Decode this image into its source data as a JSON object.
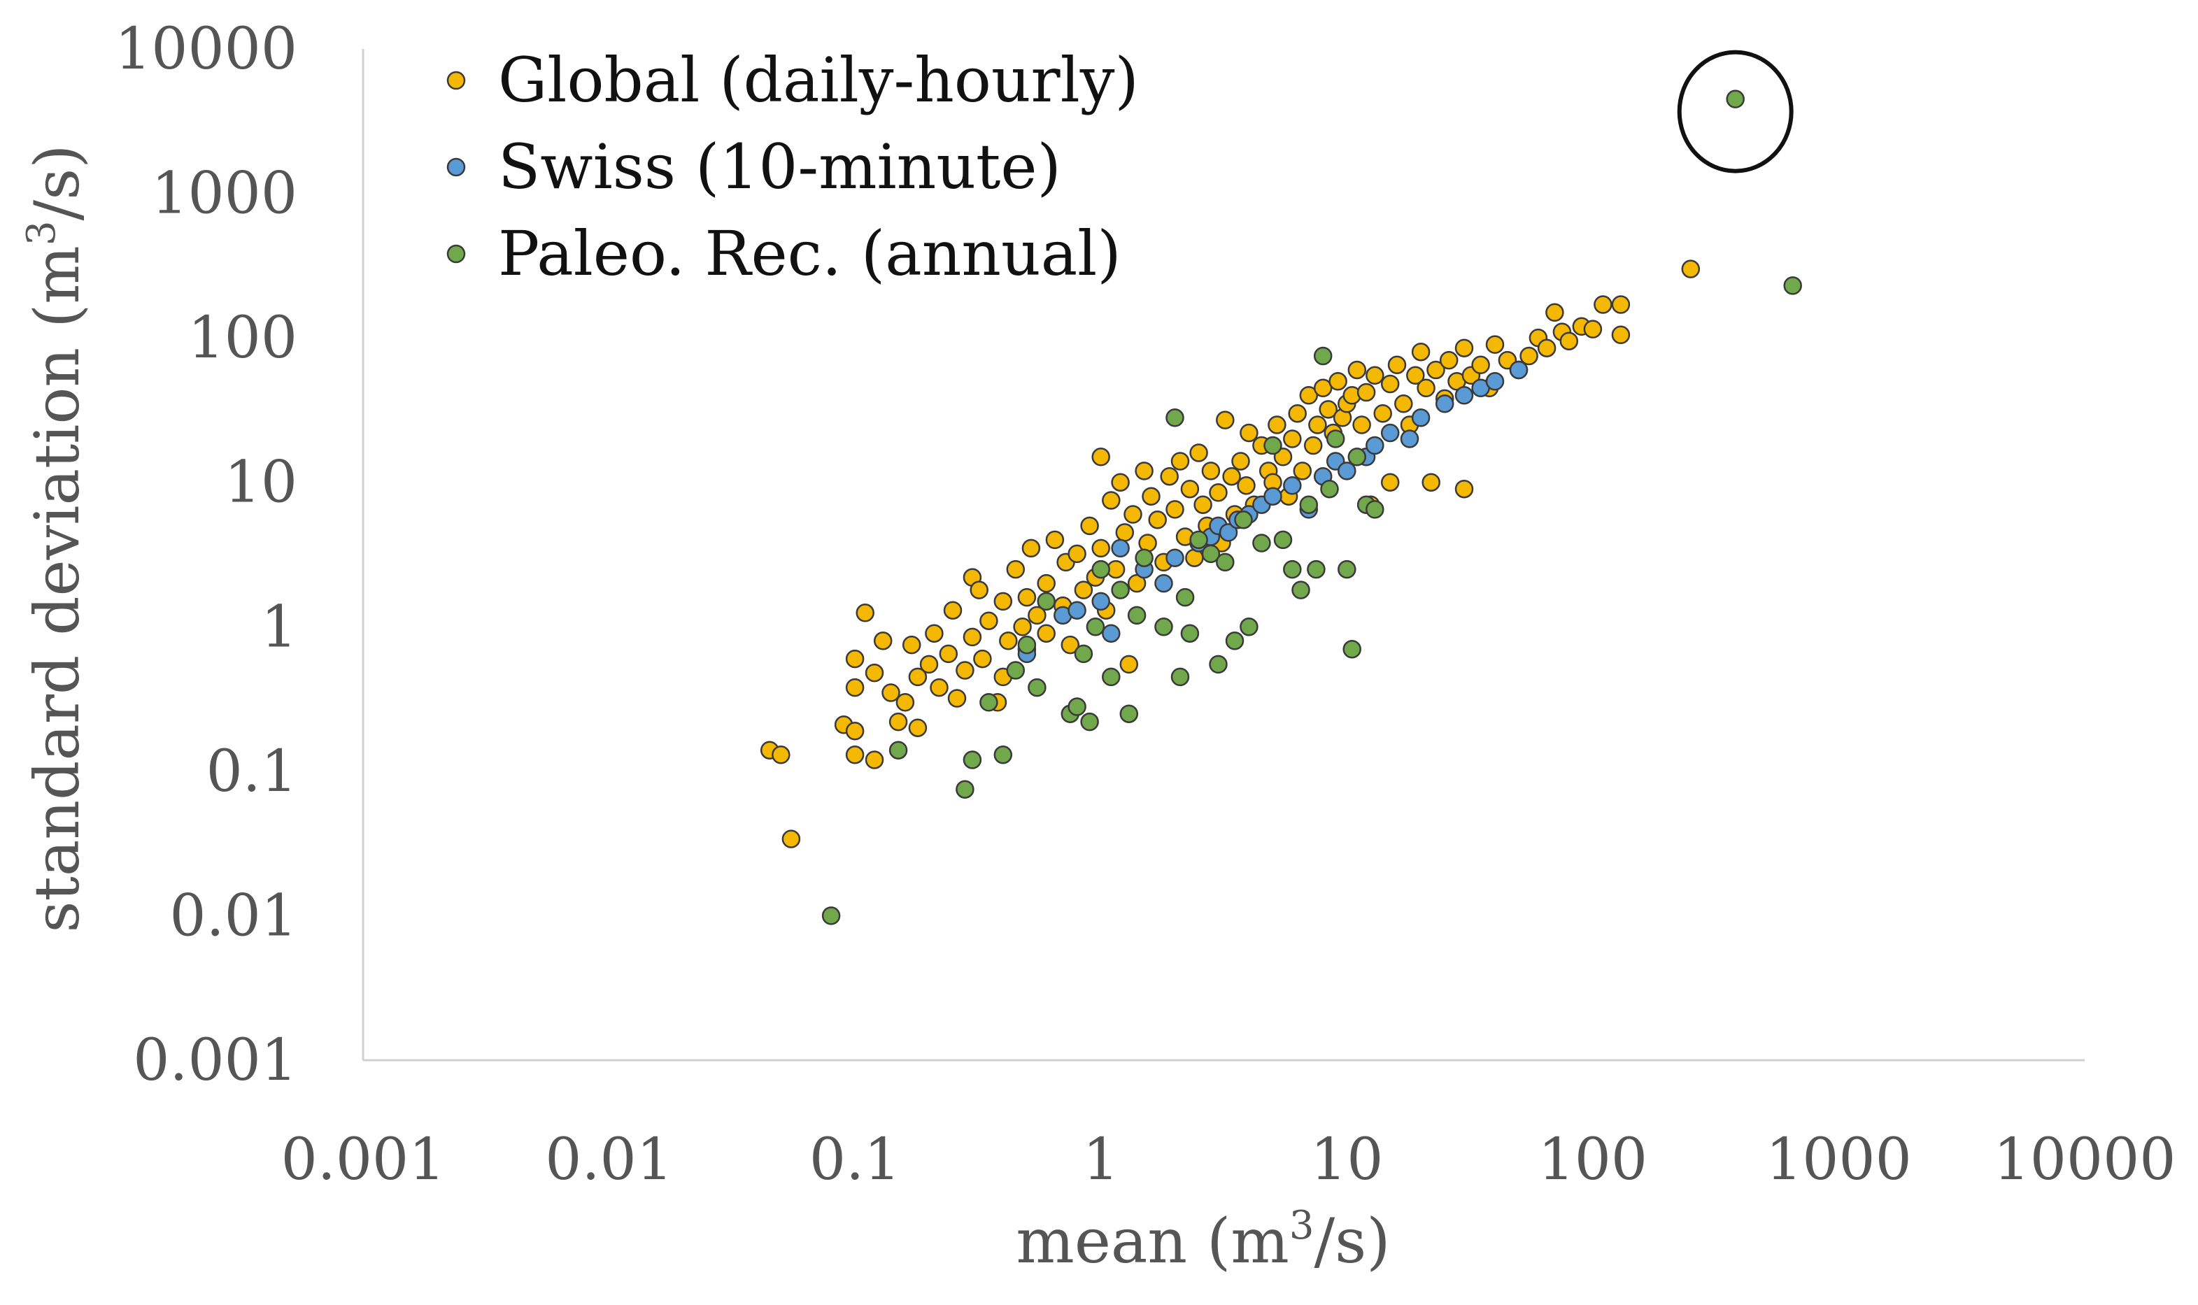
{
  "chart_data": {
    "type": "scatter",
    "title": "",
    "xlabel": {
      "main": "mean (m",
      "sup": "3",
      "tail": "/s)"
    },
    "ylabel": {
      "main": "standard deviation (m",
      "sup": "3",
      "tail": "/s)"
    },
    "x_scale": "log",
    "y_scale": "log",
    "xlim": [
      0.001,
      10000
    ],
    "ylim": [
      0.001,
      10000
    ],
    "x_ticks": [
      0.001,
      0.01,
      0.1,
      1,
      10,
      100,
      1000,
      10000
    ],
    "y_ticks": [
      0.001,
      0.01,
      0.1,
      1,
      10,
      100,
      1000,
      10000
    ],
    "x_tick_labels": [
      "0.001",
      "0.01",
      "0.1",
      "1",
      "10",
      "100",
      "1000",
      "10000"
    ],
    "y_tick_labels": [
      "0.001",
      "0.01",
      "0.1",
      "1",
      "10",
      "100",
      "1000",
      "10000"
    ],
    "grid": false,
    "legend_position": "top-left",
    "annotation": {
      "type": "circle-highlight",
      "target_series": "Paleo. Rec. (annual)",
      "x": 380,
      "y": 4500
    },
    "series": [
      {
        "name": "Global (daily-hourly)",
        "color": "#f5b800",
        "points": [
          [
            0.045,
            0.14
          ],
          [
            0.05,
            0.13
          ],
          [
            0.055,
            0.034
          ],
          [
            0.09,
            0.21
          ],
          [
            0.1,
            0.19
          ],
          [
            0.1,
            0.13
          ],
          [
            0.12,
            0.12
          ],
          [
            0.1,
            0.6
          ],
          [
            0.1,
            0.38
          ],
          [
            0.11,
            1.25
          ],
          [
            0.12,
            0.48
          ],
          [
            0.13,
            0.8
          ],
          [
            0.14,
            0.35
          ],
          [
            0.15,
            0.22
          ],
          [
            0.16,
            0.3
          ],
          [
            0.17,
            0.75
          ],
          [
            0.18,
            0.45
          ],
          [
            0.18,
            0.2
          ],
          [
            0.2,
            0.55
          ],
          [
            0.21,
            0.9
          ],
          [
            0.22,
            0.38
          ],
          [
            0.24,
            0.65
          ],
          [
            0.25,
            1.3
          ],
          [
            0.26,
            0.32
          ],
          [
            0.28,
            0.5
          ],
          [
            0.3,
            0.85
          ],
          [
            0.3,
            2.2
          ],
          [
            0.32,
            1.8
          ],
          [
            0.33,
            0.6
          ],
          [
            0.35,
            1.1
          ],
          [
            0.38,
            0.3
          ],
          [
            0.4,
            0.45
          ],
          [
            0.4,
            1.5
          ],
          [
            0.42,
            0.8
          ],
          [
            0.45,
            2.5
          ],
          [
            0.48,
            1.0
          ],
          [
            0.5,
            0.7
          ],
          [
            0.5,
            1.6
          ],
          [
            0.52,
            3.5
          ],
          [
            0.55,
            1.2
          ],
          [
            0.6,
            2.0
          ],
          [
            0.6,
            0.9
          ],
          [
            0.65,
            4.0
          ],
          [
            0.7,
            1.4
          ],
          [
            0.72,
            2.8
          ],
          [
            0.75,
            0.75
          ],
          [
            0.8,
            3.2
          ],
          [
            0.85,
            1.8
          ],
          [
            0.9,
            5.0
          ],
          [
            0.95,
            2.2
          ],
          [
            1.0,
            15
          ],
          [
            1.0,
            3.5
          ],
          [
            1.05,
            1.3
          ],
          [
            1.1,
            7.5
          ],
          [
            1.15,
            2.5
          ],
          [
            1.2,
            10
          ],
          [
            1.25,
            4.5
          ],
          [
            1.3,
            0.55
          ],
          [
            1.35,
            6.0
          ],
          [
            1.4,
            2.0
          ],
          [
            1.5,
            12
          ],
          [
            1.55,
            3.8
          ],
          [
            1.6,
            8.0
          ],
          [
            1.7,
            5.5
          ],
          [
            1.8,
            2.8
          ],
          [
            1.9,
            11
          ],
          [
            2.0,
            6.5
          ],
          [
            2.1,
            14
          ],
          [
            2.2,
            4.2
          ],
          [
            2.3,
            9.0
          ],
          [
            2.4,
            3.0
          ],
          [
            2.5,
            16
          ],
          [
            2.6,
            7.0
          ],
          [
            2.7,
            5.0
          ],
          [
            2.8,
            12
          ],
          [
            3.0,
            8.5
          ],
          [
            3.1,
            3.8
          ],
          [
            3.2,
            27
          ],
          [
            3.4,
            11
          ],
          [
            3.5,
            6.0
          ],
          [
            3.7,
            14
          ],
          [
            3.9,
            9.5
          ],
          [
            4.0,
            22
          ],
          [
            4.2,
            7.0
          ],
          [
            4.5,
            18
          ],
          [
            4.8,
            12
          ],
          [
            5.0,
            10
          ],
          [
            5.2,
            25
          ],
          [
            5.5,
            15
          ],
          [
            5.8,
            8.0
          ],
          [
            6.0,
            20
          ],
          [
            6.3,
            30
          ],
          [
            6.6,
            12
          ],
          [
            7.0,
            40
          ],
          [
            7.3,
            18
          ],
          [
            7.6,
            25
          ],
          [
            8.0,
            45
          ],
          [
            8.4,
            32
          ],
          [
            8.8,
            22
          ],
          [
            9.2,
            50
          ],
          [
            9.6,
            28
          ],
          [
            10,
            35
          ],
          [
            10.5,
            40
          ],
          [
            11,
            60
          ],
          [
            11.5,
            25
          ],
          [
            12,
            42
          ],
          [
            12.5,
            7.0
          ],
          [
            13,
            55
          ],
          [
            14,
            30
          ],
          [
            15,
            10
          ],
          [
            15,
            48
          ],
          [
            16,
            65
          ],
          [
            17,
            35
          ],
          [
            18,
            25
          ],
          [
            19,
            55
          ],
          [
            20,
            80
          ],
          [
            21,
            45
          ],
          [
            22,
            10
          ],
          [
            23,
            60
          ],
          [
            25,
            38
          ],
          [
            26,
            70
          ],
          [
            28,
            50
          ],
          [
            30,
            85
          ],
          [
            30,
            9.0
          ],
          [
            32,
            55
          ],
          [
            35,
            65
          ],
          [
            38,
            45
          ],
          [
            40,
            90
          ],
          [
            45,
            70
          ],
          [
            50,
            60
          ],
          [
            55,
            75
          ],
          [
            60,
            100
          ],
          [
            65,
            85
          ],
          [
            70,
            150
          ],
          [
            75,
            110
          ],
          [
            80,
            95
          ],
          [
            90,
            120
          ],
          [
            100,
            115
          ],
          [
            110,
            170
          ],
          [
            130,
            170
          ],
          [
            130,
            105
          ],
          [
            250,
            300
          ]
        ]
      },
      {
        "name": "Swiss (10-minute)",
        "color": "#5b9bd5",
        "points": [
          [
            0.5,
            0.65
          ],
          [
            0.7,
            1.2
          ],
          [
            0.8,
            1.3
          ],
          [
            1.0,
            1.5
          ],
          [
            1.1,
            0.9
          ],
          [
            1.2,
            3.5
          ],
          [
            1.5,
            2.5
          ],
          [
            1.8,
            2.0
          ],
          [
            2.0,
            3.0
          ],
          [
            2.5,
            3.8
          ],
          [
            2.8,
            4.2
          ],
          [
            3.0,
            5.0
          ],
          [
            3.3,
            4.5
          ],
          [
            3.6,
            5.5
          ],
          [
            4.0,
            6.0
          ],
          [
            4.5,
            7.0
          ],
          [
            5.0,
            8.0
          ],
          [
            6.0,
            9.5
          ],
          [
            7.0,
            6.5
          ],
          [
            8.0,
            11
          ],
          [
            9.0,
            14
          ],
          [
            10,
            12
          ],
          [
            12,
            15
          ],
          [
            13,
            18
          ],
          [
            15,
            22
          ],
          [
            18,
            20
          ],
          [
            20,
            28
          ],
          [
            25,
            35
          ],
          [
            30,
            40
          ],
          [
            35,
            45
          ],
          [
            40,
            50
          ],
          [
            50,
            60
          ]
        ]
      },
      {
        "name": "Paleo. Rec. (annual)",
        "color": "#70a84b",
        "points": [
          [
            0.08,
            0.01
          ],
          [
            0.15,
            0.14
          ],
          [
            0.28,
            0.075
          ],
          [
            0.3,
            0.12
          ],
          [
            0.35,
            0.3
          ],
          [
            0.4,
            0.13
          ],
          [
            0.45,
            0.5
          ],
          [
            0.5,
            0.75
          ],
          [
            0.55,
            0.38
          ],
          [
            0.6,
            1.5
          ],
          [
            0.75,
            0.25
          ],
          [
            0.8,
            0.28
          ],
          [
            0.85,
            0.65
          ],
          [
            0.9,
            0.22
          ],
          [
            0.95,
            1.0
          ],
          [
            1.0,
            2.5
          ],
          [
            1.1,
            0.45
          ],
          [
            1.2,
            1.8
          ],
          [
            1.3,
            0.25
          ],
          [
            1.4,
            1.2
          ],
          [
            1.5,
            3.0
          ],
          [
            1.8,
            1.0
          ],
          [
            2.0,
            28
          ],
          [
            2.1,
            0.45
          ],
          [
            2.2,
            1.6
          ],
          [
            2.3,
            0.9
          ],
          [
            2.5,
            4.0
          ],
          [
            2.8,
            3.2
          ],
          [
            3.0,
            0.55
          ],
          [
            3.2,
            2.8
          ],
          [
            3.5,
            0.8
          ],
          [
            3.8,
            5.5
          ],
          [
            4.0,
            1.0
          ],
          [
            4.5,
            3.8
          ],
          [
            5.0,
            18
          ],
          [
            5.5,
            4.0
          ],
          [
            6.0,
            2.5
          ],
          [
            6.5,
            1.8
          ],
          [
            7.0,
            7.0
          ],
          [
            7.5,
            2.5
          ],
          [
            8.0,
            75
          ],
          [
            8.5,
            9.0
          ],
          [
            9.0,
            20
          ],
          [
            10,
            2.5
          ],
          [
            10.5,
            0.7
          ],
          [
            11,
            15
          ],
          [
            12,
            7.0
          ],
          [
            13,
            6.5
          ],
          [
            380,
            4500
          ],
          [
            650,
            230
          ]
        ]
      }
    ]
  }
}
